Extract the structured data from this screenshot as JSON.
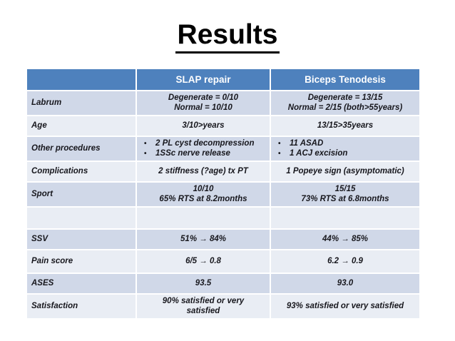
{
  "slide": {
    "title": "Results"
  },
  "bullet_glyph": "•",
  "table": {
    "headers": [
      "",
      "SLAP repair",
      "Biceps Tenodesis"
    ],
    "rows": [
      {
        "label": "Labrum",
        "slap": "Degenerate = 0/10\nNormal = 10/10",
        "biceps": "Degenerate = 13/15\nNormal = 2/15 (both>55years)"
      },
      {
        "label": "Age",
        "slap": "3/10>years",
        "biceps": "13/15>35years"
      },
      {
        "label": "Other procedures",
        "slap_bullets": [
          "2 PL cyst decompression",
          "1SSc nerve release"
        ],
        "biceps_bullets": [
          "11 ASAD",
          "1 ACJ excision"
        ]
      },
      {
        "label": "Complications",
        "slap": "2 stiffness (?age) tx PT",
        "biceps": "1 Popeye sign (asymptomatic)"
      },
      {
        "label": "Sport",
        "slap": "10/10\n65% RTS at 8.2months",
        "biceps": "15/15\n73% RTS at 6.8months"
      },
      {
        "label": "",
        "slap": "",
        "biceps": ""
      },
      {
        "label": "SSV",
        "slap": "51% → 84%",
        "biceps": "44% → 85%"
      },
      {
        "label": "Pain score",
        "slap": "6/5 → 0.8",
        "biceps": "6.2 → 0.9"
      },
      {
        "label": "ASES",
        "slap": "93.5",
        "biceps": "93.0"
      },
      {
        "label": "Satisfaction",
        "slap": "90% satisfied or very\nsatisfied",
        "biceps": "93% satisfied or very satisfied"
      }
    ]
  },
  "colors": {
    "header_bg": "#4e81bd",
    "band_dark": "#d0d8e8",
    "band_light": "#e9edf4",
    "header_text": "#ffffff",
    "body_text": "#17171d",
    "title_text": "#000000"
  }
}
